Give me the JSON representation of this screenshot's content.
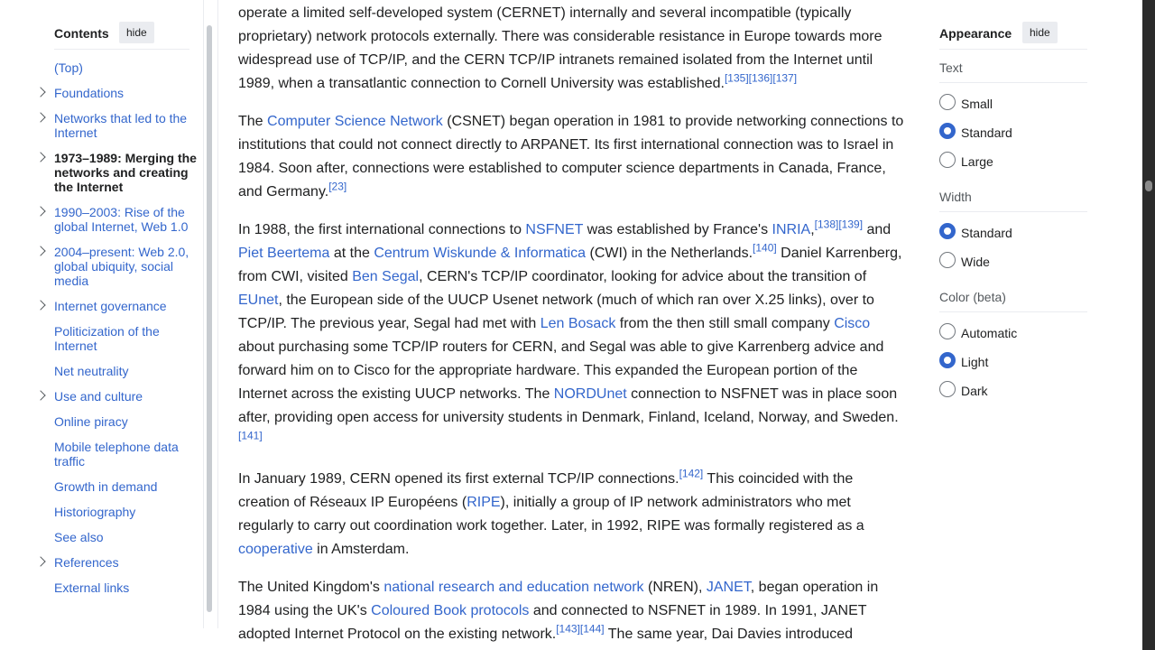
{
  "toc": {
    "title": "Contents",
    "hide_label": "hide",
    "items": [
      {
        "label": "(Top)"
      },
      {
        "label": "Foundations"
      },
      {
        "label": "Networks that led to the Internet"
      },
      {
        "label": "1973–1989: Merging the networks and creating the Internet"
      },
      {
        "label": "1990–2003: Rise of the global Internet, Web 1.0"
      },
      {
        "label": "2004–present: Web 2.0, global ubiquity, social media"
      },
      {
        "label": "Internet governance"
      },
      {
        "label": "Politicization of the Internet"
      },
      {
        "label": "Net neutrality"
      },
      {
        "label": "Use and culture"
      },
      {
        "label": "Online piracy"
      },
      {
        "label": "Mobile telephone data traffic"
      },
      {
        "label": "Growth in demand"
      },
      {
        "label": "Historiography"
      },
      {
        "label": "See also"
      },
      {
        "label": "References"
      },
      {
        "label": "External links"
      }
    ]
  },
  "article": {
    "p1": {
      "t1": "operate a limited self-developed system (CERNET) internally and several incompatible (typically proprietary) network protocols externally. There was considerable resistance in Europe towards more widespread use of TCP/IP, and the CERN TCP/IP intranets remained isolated from the Internet until 1989, when a transatlantic connection to Cornell University was established.",
      "r1": "[135]",
      "r2": "[136]",
      "r3": "[137]"
    },
    "p2": {
      "t0": "The ",
      "l1": "Computer Science Network",
      "t1": " (CSNET) began operation in 1981 to provide networking connections to institutions that could not connect directly to ARPANET. Its first international connection was to Israel in 1984. Soon after, connections were established to computer science departments in Canada, France, and Germany.",
      "r1": "[23]"
    },
    "p3": {
      "t0": "In 1988, the first international connections to ",
      "l1": "NSFNET",
      "t1": " was established by France's ",
      "l2": "INRIA",
      "t2": ",",
      "r1": "[138]",
      "r2": "[139]",
      "t3": " and ",
      "l3": "Piet Beertema",
      "t4": " at the ",
      "l4": "Centrum Wiskunde & Informatica",
      "t5": " (CWI) in the Netherlands.",
      "r3": "[140]",
      "t6": " Daniel Karrenberg, from CWI, visited ",
      "l5": "Ben Segal",
      "t7": ", CERN's TCP/IP coordinator, looking for advice about the transition of ",
      "l6": "EUnet",
      "t8": ", the European side of the UUCP Usenet network (much of which ran over X.25 links), over to TCP/IP. The previous year, Segal had met with ",
      "l7": "Len Bosack",
      "t9": " from the then still small company ",
      "l8": "Cisco",
      "t10": " about purchasing some TCP/IP routers for CERN, and Segal was able to give Karrenberg advice and forward him on to Cisco for the appropriate hardware. This expanded the European portion of the Internet across the existing UUCP networks. The ",
      "l9": "NORDUnet",
      "t11": " connection to NSFNET was in place soon after, providing open access for university students in Denmark, Finland, Iceland, Norway, and Sweden.",
      "r4": "[141]"
    },
    "p4": {
      "t0": "In January 1989, CERN opened its first external TCP/IP connections.",
      "r1": "[142]",
      "t1": " This coincided with the creation of Réseaux IP Européens (",
      "l1": "RIPE",
      "t2": "), initially a group of IP network administrators who met regularly to carry out coordination work together. Later, in 1992, RIPE was formally registered as a ",
      "l2": "cooperative",
      "t3": " in Amsterdam."
    },
    "p5": {
      "t0": "The United Kingdom's ",
      "l1": "national research and education network",
      "t1": " (NREN), ",
      "l2": "JANET",
      "t2": ", began operation in 1984 using the UK's ",
      "l3": "Coloured Book protocols",
      "t3": " and connected to NSFNET in 1989. In 1991, JANET adopted Internet Protocol on the existing network.",
      "r1": "[143]",
      "r2": "[144]",
      "t4": " The same year, Dai Davies introduced"
    }
  },
  "appearance": {
    "title": "Appearance",
    "hide_label": "hide",
    "text": {
      "label": "Text",
      "options": [
        "Small",
        "Standard",
        "Large"
      ],
      "selected": "Standard"
    },
    "width": {
      "label": "Width",
      "options": [
        "Standard",
        "Wide"
      ],
      "selected": "Standard"
    },
    "color": {
      "label": "Color (beta)",
      "options": [
        "Automatic",
        "Light",
        "Dark"
      ],
      "selected": "Light"
    }
  },
  "colors": {
    "link": "#3366cc",
    "text": "#202122",
    "accent": "#3366cc"
  }
}
